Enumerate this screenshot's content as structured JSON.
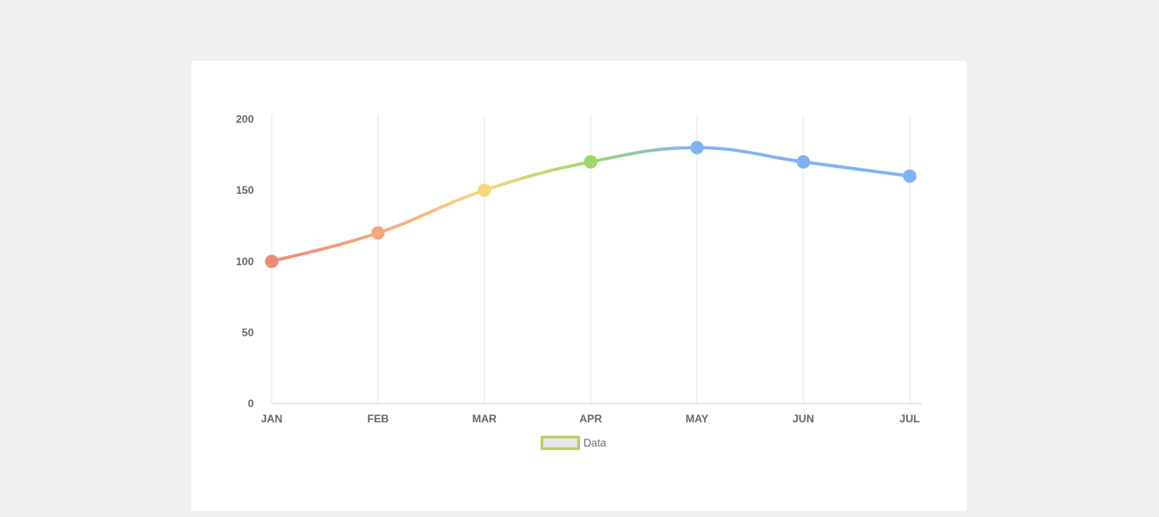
{
  "chart_data": {
    "type": "line",
    "categories": [
      "JAN",
      "FEB",
      "MAR",
      "APR",
      "MAY",
      "JUN",
      "JUL"
    ],
    "series": [
      {
        "name": "Data",
        "values": [
          100,
          120,
          150,
          170,
          180,
          170,
          160
        ]
      }
    ],
    "ylim": [
      0,
      200
    ],
    "yticks": [
      0,
      50,
      100,
      150,
      200
    ],
    "grid": "vertical",
    "legend": "bottom",
    "point_colors": [
      "#ef8873",
      "#f4a67e",
      "#fcd57a",
      "#9bd86b",
      "#7eb3f3",
      "#7eb3f3",
      "#7eb3f3"
    ],
    "legend_swatch": {
      "fill": "#e6e6e6",
      "border": "#b5d365"
    },
    "colors": {
      "grid": "#e6e6e6",
      "axis": "#d6d6d6",
      "text": "#666666"
    }
  }
}
